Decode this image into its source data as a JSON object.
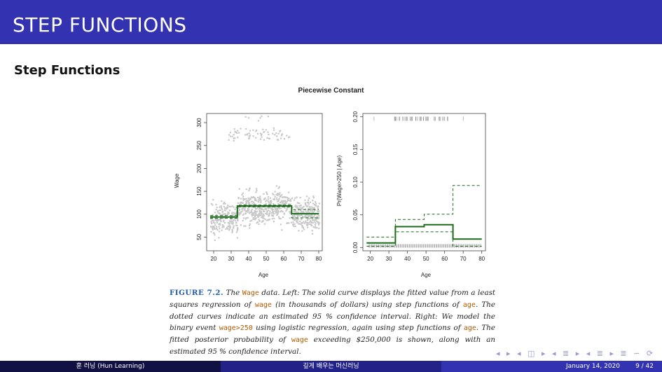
{
  "header": {
    "title": "STEP FUNCTIONS"
  },
  "section": {
    "title": "Step Functions"
  },
  "figure": {
    "title": "Piecewise Constant",
    "caption": {
      "fig_number": "FIGURE 7.2.",
      "parts": [
        {
          "t": "text",
          "v": " The "
        },
        {
          "t": "code",
          "v": "Wage"
        },
        {
          "t": "text",
          "v": " data. Left: The solid curve displays the fitted value from a least squares regression of "
        },
        {
          "t": "code",
          "v": "wage"
        },
        {
          "t": "text",
          "v": " (in thousands of dollars) using step functions of "
        },
        {
          "t": "code",
          "v": "age"
        },
        {
          "t": "text",
          "v": ". The dotted curves indicate an estimated 95 % confidence interval. Right: We model the binary event "
        },
        {
          "t": "code",
          "v": "wage>250"
        },
        {
          "t": "text",
          "v": " using logistic regression, again using step functions of "
        },
        {
          "t": "code",
          "v": "age"
        },
        {
          "t": "text",
          "v": ". The fitted posterior probability of "
        },
        {
          "t": "code",
          "v": "wage"
        },
        {
          "t": "text",
          "v": " exceeding $250,000 is shown, along with an estimated 95 % confidence interval."
        }
      ]
    }
  },
  "chart_data": [
    {
      "type": "scatter",
      "title": "",
      "xlabel": "Age",
      "ylabel": "Wage",
      "xlim": [
        16,
        82
      ],
      "ylim": [
        20,
        320
      ],
      "xticks": [
        20,
        30,
        40,
        50,
        60,
        70,
        80
      ],
      "yticks": [
        50,
        100,
        150,
        200,
        250,
        300
      ],
      "fit": {
        "x": [
          18,
          33.5,
          33.5,
          49,
          49,
          64.5,
          64.5,
          80
        ],
        "y": [
          94,
          94,
          118,
          118,
          118,
          118,
          101,
          101
        ]
      },
      "ci_upper": {
        "x": [
          18,
          33.5,
          33.5,
          49,
          49,
          64.5,
          64.5,
          80
        ],
        "y": [
          97,
          97,
          120,
          120,
          120,
          120,
          110,
          110
        ]
      },
      "ci_lower": {
        "x": [
          18,
          33.5,
          33.5,
          49,
          49,
          64.5,
          64.5,
          80
        ],
        "y": [
          91,
          91,
          116,
          116,
          116,
          116,
          92,
          92
        ]
      },
      "colors": {
        "points": "#c8c8c8",
        "fit": "#1b6b1b"
      }
    },
    {
      "type": "line",
      "title": "",
      "xlabel": "Age",
      "ylabel": "Pr(Wage>250 | Age)",
      "xlim": [
        16,
        82
      ],
      "ylim": [
        -0.005,
        0.205
      ],
      "xticks": [
        20,
        30,
        40,
        50,
        60,
        70,
        80
      ],
      "yticks": [
        0.0,
        0.05,
        0.1,
        0.15,
        0.2
      ],
      "ytick_labels": [
        "0.00",
        "0.05",
        "0.10",
        "0.15",
        "0.20"
      ],
      "fit": {
        "x": [
          18,
          33.5,
          33.5,
          49,
          49,
          64.5,
          64.5,
          80
        ],
        "y": [
          0.007,
          0.007,
          0.032,
          0.032,
          0.035,
          0.035,
          0.013,
          0.013
        ]
      },
      "ci_upper": {
        "x": [
          18,
          33.5,
          33.5,
          49,
          49,
          64.5,
          64.5,
          80
        ],
        "y": [
          0.016,
          0.016,
          0.043,
          0.043,
          0.051,
          0.051,
          0.095,
          0.095
        ]
      },
      "ci_lower": {
        "x": [
          18,
          33.5,
          33.5,
          49,
          49,
          64.5,
          64.5,
          80
        ],
        "y": [
          0.002,
          0.002,
          0.024,
          0.024,
          0.024,
          0.024,
          0.002,
          0.002
        ]
      },
      "rug_top_y": 0.197,
      "rug_bottom_y": 0.002,
      "colors": {
        "fit": "#1b6b1b",
        "rug": "#888888"
      }
    }
  ],
  "nav_icons": "◂ ▸ ◂ ◫ ▸ ◂ ≣ ▸ ◂ ≣ ▸ ≣ ∽ ⟳",
  "footer": {
    "author": "훈 러닝 (Hun Learning)",
    "book": "깊게 배우는 머신러닝",
    "date": "January 14, 2020",
    "page": "9 / 42"
  }
}
